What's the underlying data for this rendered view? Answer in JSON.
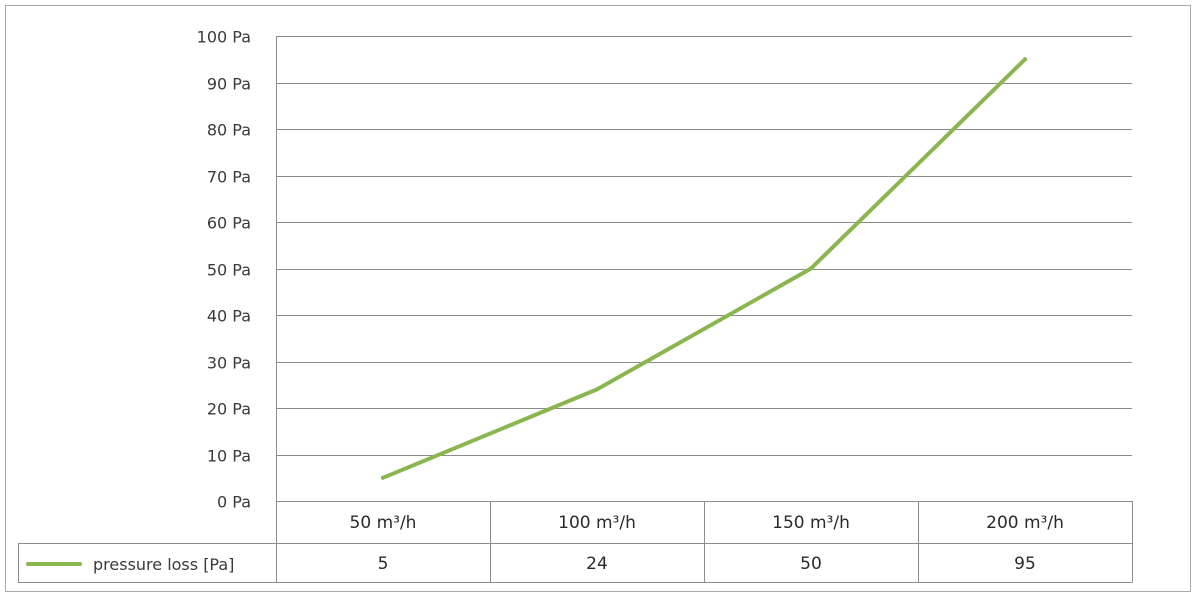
{
  "colors": {
    "series": "#8ab64f",
    "grid": "#8c8c8c",
    "frame": "#a9a9a9",
    "text": "#3a3a3a"
  },
  "chart_data": {
    "type": "line",
    "title": "",
    "xlabel": "",
    "ylabel": "",
    "categories": [
      "50 m³/h",
      "100 m³/h",
      "150 m³/h",
      "200 m³/h"
    ],
    "ylim": [
      0,
      100
    ],
    "yticks": [
      0,
      10,
      20,
      30,
      40,
      50,
      60,
      70,
      80,
      90,
      100
    ],
    "ytick_labels": [
      "0 Pa",
      "10 Pa",
      "20 Pa",
      "30 Pa",
      "40 Pa",
      "50 Pa",
      "60 Pa",
      "70 Pa",
      "80 Pa",
      "90 Pa",
      "100 Pa"
    ],
    "grid": true,
    "legend": "bottom-left (data table)",
    "data_table": true,
    "series": [
      {
        "name": "pressure loss  [Pa]",
        "values": [
          5,
          24,
          50,
          95
        ],
        "value_labels": [
          "5",
          "24",
          "50",
          "95"
        ]
      }
    ]
  }
}
